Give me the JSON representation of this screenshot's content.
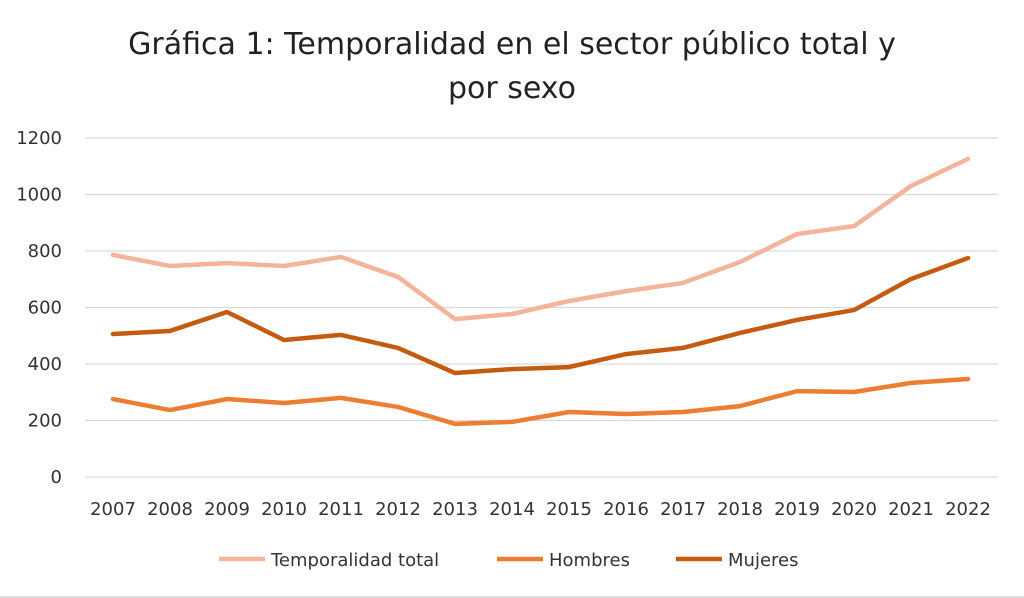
{
  "chart_data": {
    "type": "line",
    "title": "Gráfica 1: Temporalidad en el sector público total y por sexo",
    "title_lines": [
      "Gráfica 1: Temporalidad en el sector público total y",
      "por sexo"
    ],
    "xlabel": "",
    "ylabel": "",
    "x": [
      "2007",
      "2008",
      "2009",
      "2010",
      "2011",
      "2012",
      "2013",
      "2014",
      "2015",
      "2016",
      "2017",
      "2018",
      "2019",
      "2020",
      "2021",
      "2022"
    ],
    "ylim": [
      0,
      1200
    ],
    "yticks": [
      0,
      200,
      400,
      600,
      800,
      1000,
      1200
    ],
    "grid": "horizontal",
    "legend_position": "bottom",
    "series": [
      {
        "name": "Temporalidad total",
        "color": "#F4B49A",
        "values": [
          786,
          747,
          757,
          747,
          779,
          708,
          559,
          577,
          623,
          658,
          687,
          761,
          860,
          888,
          1030,
          1126
        ]
      },
      {
        "name": "Hombres",
        "color": "#ED7D31",
        "values": [
          276,
          237,
          276,
          262,
          280,
          248,
          188,
          195,
          230,
          223,
          230,
          251,
          304,
          301,
          333,
          347
        ]
      },
      {
        "name": "Mujeres",
        "color": "#C55A11",
        "values": [
          506,
          517,
          584,
          485,
          503,
          457,
          368,
          382,
          389,
          435,
          457,
          510,
          556,
          591,
          701,
          775
        ]
      }
    ]
  }
}
